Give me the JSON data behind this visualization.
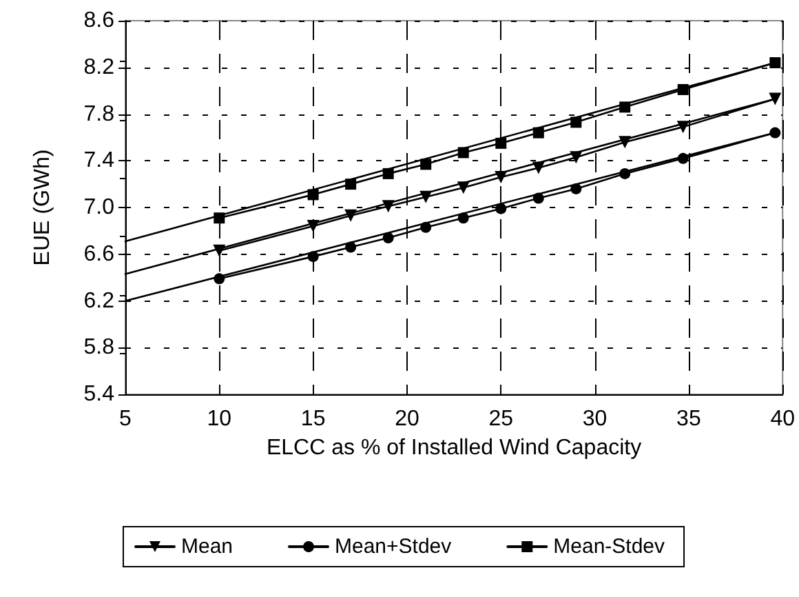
{
  "chart_data": {
    "type": "line",
    "xlabel": "ELCC as % of Installed Wind Capacity",
    "ylabel": "EUE (GWh)",
    "xlim": [
      5,
      40
    ],
    "xticks": [
      5,
      10,
      15,
      20,
      25,
      30,
      35,
      40
    ],
    "ylim": [
      5.4,
      8.6
    ],
    "yticks": [
      5.4,
      5.8,
      6.2,
      6.6,
      {
        "value": 7,
        "label": "7.0"
      },
      7.4,
      7.8,
      8.2,
      8.6
    ],
    "grid": true,
    "legend": "bottom",
    "line_style": "solid",
    "series": [
      {
        "name": "Mean",
        "color": "#000000",
        "marker": "triangle",
        "x": [
          10,
          15,
          17,
          19,
          21,
          23,
          25,
          27,
          29,
          31.6,
          34.7,
          39.6
        ],
        "values": [
          6.63,
          6.84,
          6.93,
          7.01,
          7.09,
          7.17,
          7.26,
          7.34,
          7.43,
          7.56,
          7.69,
          7.93
        ]
      },
      {
        "name": "Mean+Stdev",
        "color": "#000000",
        "marker": "circle",
        "x": [
          10,
          15,
          17,
          19,
          21,
          23,
          25,
          27,
          29,
          31.6,
          34.7,
          39.6
        ],
        "values": [
          6.39,
          6.58,
          6.66,
          6.74,
          6.83,
          6.91,
          6.99,
          7.08,
          7.16,
          7.29,
          7.42,
          7.64
        ]
      },
      {
        "name": "Mean-Stdev",
        "color": "#000000",
        "marker": "square",
        "x": [
          10,
          15,
          17,
          19,
          21,
          23,
          25,
          27,
          29,
          31.6,
          34.7,
          39.6
        ],
        "values": [
          6.91,
          7.11,
          7.2,
          7.29,
          7.37,
          7.47,
          7.55,
          7.64,
          7.73,
          7.86,
          8.01,
          8.24
        ]
      },
      {
        "type": "line",
        "color": "#000000",
        "marker": "none",
        "x": [
          5,
          39.6
        ],
        "values": [
          6.43,
          7.93
        ]
      },
      {
        "type": "line",
        "color": "#000000",
        "marker": "none",
        "x": [
          5,
          39.6
        ],
        "values": [
          6.2,
          7.64
        ]
      },
      {
        "type": "line",
        "color": "#000000",
        "marker": "none",
        "x": [
          5,
          39.6
        ],
        "values": [
          6.71,
          8.24
        ]
      }
    ]
  }
}
